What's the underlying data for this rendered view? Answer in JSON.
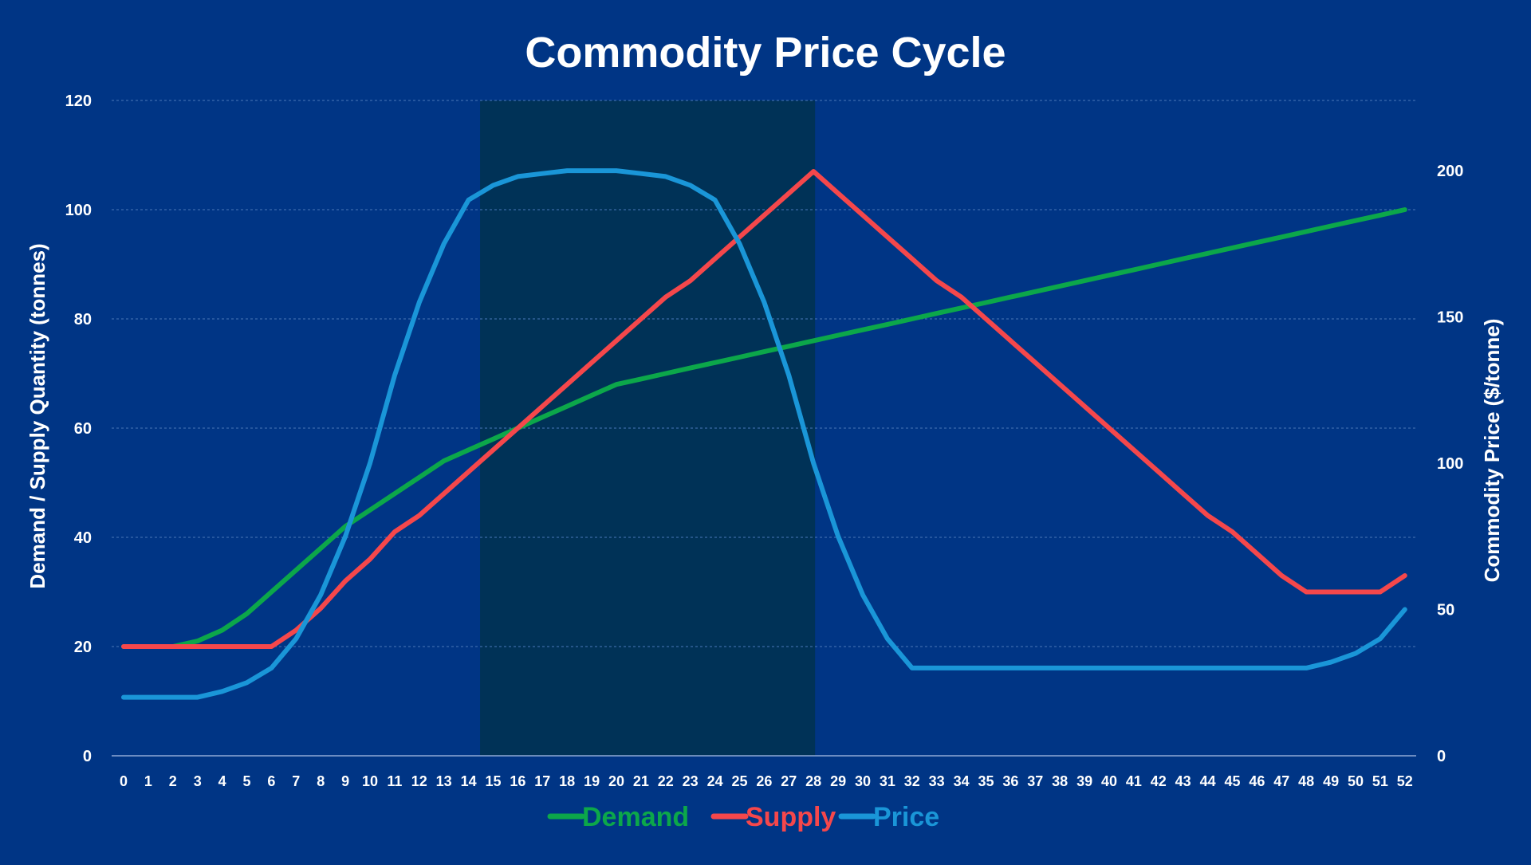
{
  "chart_data": {
    "type": "line",
    "title": "Commodity Price Cycle",
    "ylabel": "Demand  / Supply Quantity (tonnes)",
    "y2label": "Commodity Price ($/tonne)",
    "ylim": [
      0,
      120
    ],
    "y2lim": [
      0,
      224
    ],
    "yticks": [
      "0",
      "20",
      "40",
      "60",
      "80",
      "100",
      "120"
    ],
    "y2ticks": [
      "0",
      "50",
      "100",
      "150",
      "200"
    ],
    "grid": true,
    "legend_position": "bottom",
    "x": [
      0,
      1,
      2,
      3,
      4,
      5,
      6,
      7,
      8,
      9,
      10,
      11,
      12,
      13,
      14,
      15,
      16,
      17,
      18,
      19,
      20,
      21,
      22,
      23,
      24,
      25,
      26,
      27,
      28,
      29,
      30,
      31,
      32,
      33,
      34,
      35,
      36,
      37,
      38,
      39,
      40,
      41,
      42,
      43,
      44,
      45,
      46,
      47,
      48,
      49,
      50,
      51,
      52
    ],
    "xtick_labels": [
      "0",
      "1",
      "2",
      "3",
      "4",
      "5",
      "6",
      "7",
      "8",
      "9",
      "10",
      "11",
      "12",
      "13",
      "14",
      "15",
      "16",
      "17",
      "18",
      "19",
      "20",
      "21",
      "22",
      "23",
      "24",
      "25",
      "26",
      "27",
      "28",
      "29",
      "30",
      "31",
      "32",
      "33",
      "34",
      "35",
      "36",
      "37",
      "38",
      "39",
      "40",
      "41",
      "42",
      "43",
      "44",
      "45",
      "46",
      "47",
      "48",
      "49",
      "50",
      "51",
      "52"
    ],
    "shaded_region": {
      "x_start": 14.5,
      "x_end": 28,
      "color": "#003257"
    },
    "series": [
      {
        "name": "Demand",
        "axis": "left",
        "color": "#0ca74a",
        "values": [
          20,
          20,
          20,
          21,
          23,
          26,
          30,
          34,
          38,
          42,
          45,
          48,
          51,
          54,
          56,
          58,
          60,
          62,
          64,
          66,
          68,
          69,
          70,
          71,
          72,
          73,
          74,
          75,
          76,
          77,
          78,
          79,
          80,
          81,
          82,
          83,
          84,
          85,
          86,
          87,
          88,
          89,
          90,
          91,
          92,
          93,
          94,
          95,
          96,
          97,
          98,
          99,
          100
        ]
      },
      {
        "name": "Supply",
        "axis": "left",
        "color": "#f5474b",
        "values": [
          20,
          20,
          20,
          20,
          20,
          20,
          20,
          23,
          27,
          32,
          36,
          41,
          44,
          48,
          52,
          56,
          60,
          64,
          68,
          72,
          76,
          80,
          84,
          87,
          91,
          95,
          99,
          103,
          107,
          103,
          99,
          95,
          91,
          87,
          84,
          80,
          76,
          72,
          68,
          64,
          60,
          56,
          52,
          48,
          44,
          41,
          37,
          33,
          30,
          30,
          30,
          30,
          33
        ]
      },
      {
        "name": "Price",
        "axis": "right",
        "color": "#1a96d8",
        "values": [
          20,
          20,
          20,
          20,
          22,
          25,
          30,
          40,
          55,
          75,
          100,
          130,
          155,
          175,
          190,
          195,
          198,
          199,
          200,
          200,
          200,
          199,
          198,
          195,
          190,
          175,
          155,
          130,
          100,
          75,
          55,
          40,
          30,
          30,
          30,
          30,
          30,
          30,
          30,
          30,
          30,
          30,
          30,
          30,
          30,
          30,
          30,
          30,
          30,
          32,
          35,
          40,
          50
        ]
      }
    ]
  }
}
